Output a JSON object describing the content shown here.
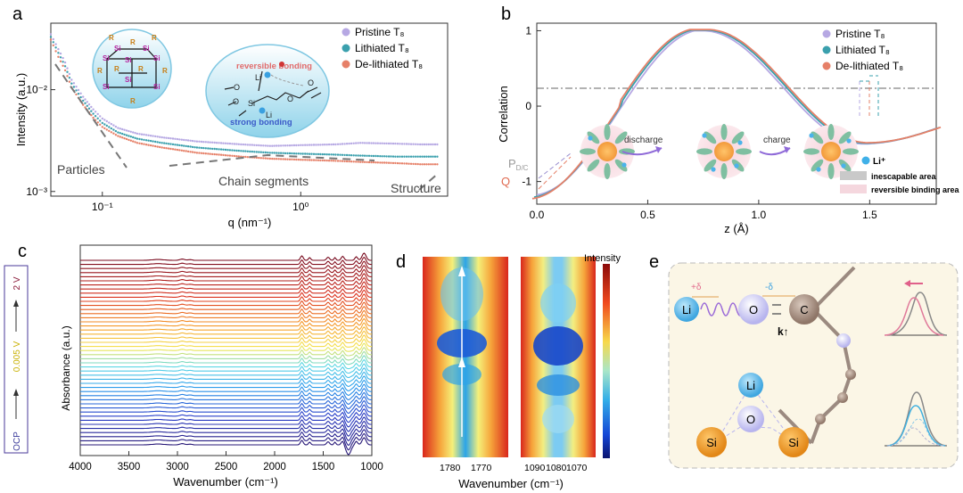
{
  "panels": {
    "a": {
      "letter": "a"
    },
    "b": {
      "letter": "b"
    },
    "c": {
      "letter": "c"
    },
    "d": {
      "letter": "d"
    },
    "e": {
      "letter": "e"
    }
  },
  "chart_data": [
    {
      "panel": "a",
      "type": "scatter",
      "xlabel": "q (nm⁻¹)",
      "ylabel": "Intensity (a.u.)",
      "xscale": "log",
      "yscale": "log",
      "xlim": [
        0.055,
        5.5
      ],
      "ylim": [
        0.0009,
        0.045
      ],
      "xticks": [
        {
          "v": 0.1,
          "label": "10⁻¹"
        },
        {
          "v": 1,
          "label": "10⁰"
        }
      ],
      "yticks": [
        {
          "v": 0.001,
          "label": "10⁻³"
        },
        {
          "v": 0.01,
          "label": "10⁻²"
        }
      ],
      "legend_position": "top-right",
      "series": [
        {
          "name": "Pristine T₈",
          "color": "#b6a8e3",
          "x": [
            0.055,
            0.06,
            0.065,
            0.07,
            0.08,
            0.09,
            0.1,
            0.12,
            0.15,
            0.2,
            0.3,
            0.5,
            0.7,
            1,
            1.5,
            2,
            3,
            4,
            5
          ],
          "y": [
            0.035,
            0.025,
            0.0185,
            0.0125,
            0.0085,
            0.0064,
            0.0052,
            0.0042,
            0.0037,
            0.0034,
            0.0031,
            0.0029,
            0.0028,
            0.00285,
            0.0029,
            0.003,
            0.00295,
            0.0029,
            0.0029
          ]
        },
        {
          "name": "Lithiated T₈",
          "color": "#3aa0ad",
          "x": [
            0.055,
            0.06,
            0.065,
            0.07,
            0.08,
            0.09,
            0.1,
            0.12,
            0.15,
            0.2,
            0.3,
            0.5,
            0.7,
            1,
            1.5,
            2,
            3,
            4,
            5
          ],
          "y": [
            0.033,
            0.023,
            0.017,
            0.0115,
            0.0078,
            0.0058,
            0.0047,
            0.0038,
            0.0033,
            0.003,
            0.0027,
            0.0025,
            0.0024,
            0.00235,
            0.0023,
            0.00225,
            0.0022,
            0.0022,
            0.0022
          ]
        },
        {
          "name": "De-lithiated T₈",
          "color": "#e68068",
          "x": [
            0.055,
            0.06,
            0.065,
            0.07,
            0.08,
            0.09,
            0.1,
            0.12,
            0.15,
            0.2,
            0.3,
            0.5,
            0.7,
            1,
            1.5,
            2,
            3,
            4,
            5
          ],
          "y": [
            0.031,
            0.021,
            0.0155,
            0.0105,
            0.0071,
            0.0053,
            0.0043,
            0.0035,
            0.003,
            0.0027,
            0.0024,
            0.0022,
            0.0021,
            0.00205,
            0.002,
            0.00195,
            0.0019,
            0.00185,
            0.00185
          ]
        }
      ],
      "annotations": [
        "Particles",
        "Chain segments",
        "Structure",
        "reversible bonding",
        "strong bonding",
        "Li",
        "R",
        "Si",
        "O"
      ]
    },
    {
      "panel": "b",
      "type": "line",
      "xlabel": "z (Å)",
      "ylabel": "Correlation",
      "xlim": [
        0.0,
        1.8
      ],
      "ylim": [
        -1.3,
        1.1
      ],
      "xticks": [
        0.0,
        0.5,
        1.0,
        1.5
      ],
      "yticks": [
        -1,
        0,
        1
      ],
      "legend_position": "top-right",
      "series": [
        {
          "name": "Pristine T₈",
          "color": "#b6a8e3"
        },
        {
          "name": "Lithiated T₈",
          "color": "#3aa0ad"
        },
        {
          "name": "De-lithiated T₈",
          "color": "#e68068"
        }
      ],
      "annotations": [
        "discharge",
        "charge",
        "Li⁺",
        "inescapable area",
        "reversible binding area",
        "Q",
        "P",
        "D/C"
      ]
    },
    {
      "panel": "c",
      "type": "line",
      "xlabel": "Wavenumber (cm⁻¹)",
      "ylabel": "Absorbance (a.u.)",
      "xlim": [
        4000,
        1000
      ],
      "xticks": [
        4000,
        3500,
        3000,
        2500,
        2000,
        1500,
        1000
      ],
      "voltage_labels": [
        "OCP",
        "0.005 V",
        "2 V"
      ],
      "series_count": 46
    },
    {
      "panel": "d",
      "type": "heatmap",
      "xlabel": "Wavenumber (cm⁻¹)",
      "colorbar_label": "Intensity",
      "left_xticks": [
        "1780",
        "1770"
      ],
      "right_xticks": [
        "1090",
        "1080",
        "1070"
      ]
    }
  ],
  "panel_e": {
    "atoms": [
      "Li",
      "O",
      "C",
      "Li",
      "O",
      "Si",
      "Si"
    ],
    "charges": [
      "+δ",
      "-δ"
    ],
    "k_label": "k↑"
  }
}
